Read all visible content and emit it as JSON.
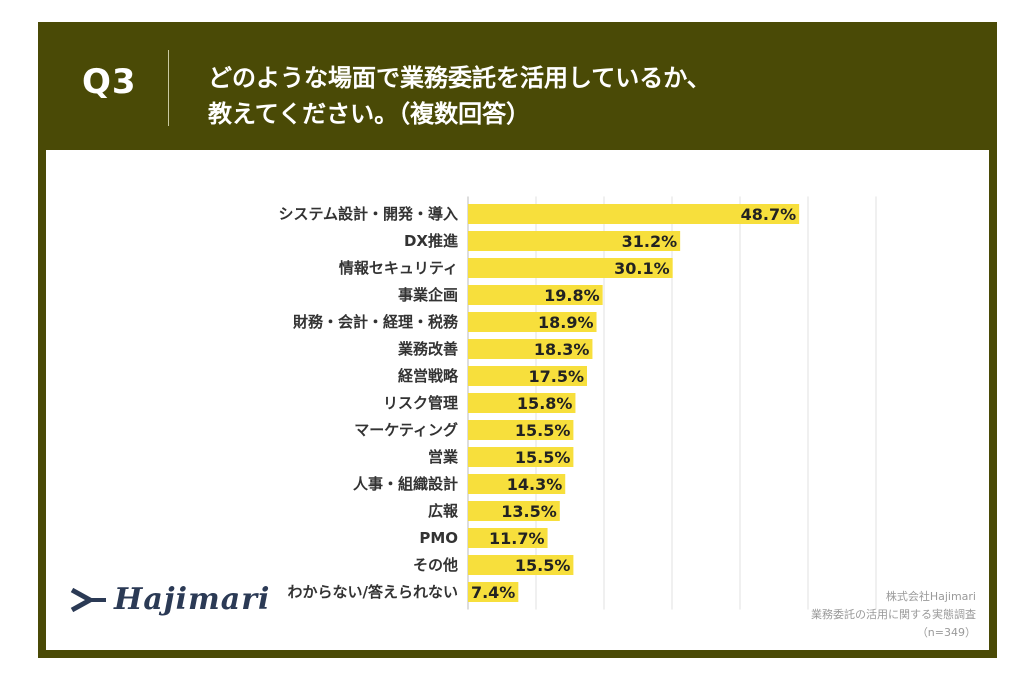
{
  "header": {
    "question_no": "Q3",
    "question_line1": "どのような場面で業務委託を活用しているか、",
    "question_line2": "教えてください。（複数回答）"
  },
  "chart_data": {
    "type": "bar",
    "orientation": "horizontal",
    "title": "どのような場面で業務委託を活用しているか、教えてください。（複数回答）",
    "categories": [
      "システム設計・開発・導入",
      "DX推進",
      "情報セキュリティ",
      "事業企画",
      "財務・会計・経理・税務",
      "業務改善",
      "経営戦略",
      "リスク管理",
      "マーケティング",
      "営業",
      "人事・組織設計",
      "広報",
      "PMO",
      "その他",
      "わからない/答えられない"
    ],
    "values": [
      48.7,
      31.2,
      30.1,
      19.8,
      18.9,
      18.3,
      17.5,
      15.8,
      15.5,
      15.5,
      14.3,
      13.5,
      11.7,
      15.5,
      7.4
    ],
    "value_labels": [
      "48.7%",
      "31.2%",
      "30.1%",
      "19.8%",
      "18.9%",
      "18.3%",
      "17.5%",
      "15.8%",
      "15.5%",
      "15.5%",
      "14.3%",
      "13.5%",
      "11.7%",
      "15.5%",
      "7.4%"
    ],
    "unit": "%",
    "xlim": [
      0,
      60
    ],
    "grid": true,
    "bar_color": "#f7df3c"
  },
  "logo": {
    "text": "Hajimari"
  },
  "source": {
    "company": "株式会社Hajimari",
    "survey": "業務委託の活用に関する実態調査",
    "sample": "（n=349）"
  },
  "colors": {
    "frame": "#4a4a06",
    "bar": "#f7df3c",
    "text": "#333333"
  }
}
